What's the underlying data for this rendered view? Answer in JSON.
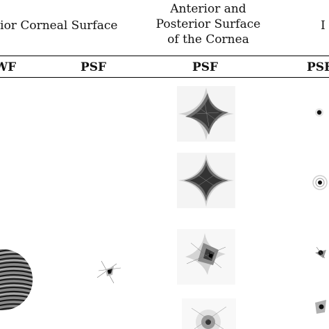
{
  "figure": {
    "group_headers": {
      "left": "rior Corneal Surface",
      "middle": [
        "Anterior and",
        "Posterior Surface",
        "of the Cornea"
      ],
      "right": "I"
    },
    "column_headers": [
      "WF",
      "PSF",
      "PSF",
      "PSF"
    ],
    "colors": {
      "ink": "#111111",
      "rule": "#000000",
      "background": "#ffffff"
    }
  }
}
